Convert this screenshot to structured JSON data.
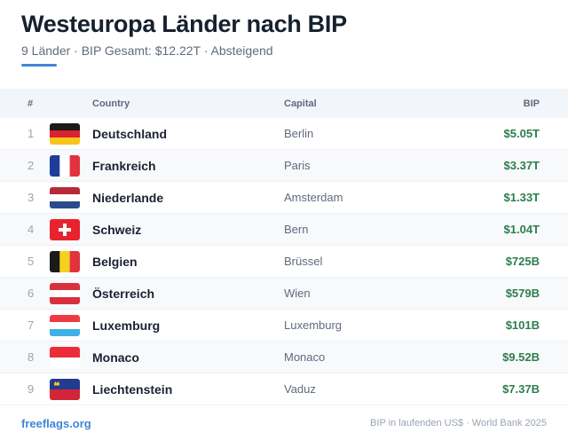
{
  "header": {
    "title": "Westeuropa Länder nach BIP",
    "subtitle": "9 Länder · BIP Gesamt: $12.22T · Absteigend"
  },
  "table": {
    "columns": {
      "num": "#",
      "country": "Country",
      "capital": "Capital",
      "gdp": "BIP"
    },
    "rows": [
      {
        "rank": "1",
        "country": "Deutschland",
        "capital": "Berlin",
        "gdp": "$5.05T",
        "flag": "germany-flag-icon"
      },
      {
        "rank": "2",
        "country": "Frankreich",
        "capital": "Paris",
        "gdp": "$3.37T",
        "flag": "france-flag-icon"
      },
      {
        "rank": "3",
        "country": "Niederlande",
        "capital": "Amsterdam",
        "gdp": "$1.33T",
        "flag": "netherlands-flag-icon"
      },
      {
        "rank": "4",
        "country": "Schweiz",
        "capital": "Bern",
        "gdp": "$1.04T",
        "flag": "switzerland-flag-icon"
      },
      {
        "rank": "5",
        "country": "Belgien",
        "capital": "Brüssel",
        "gdp": "$725B",
        "flag": "belgium-flag-icon"
      },
      {
        "rank": "6",
        "country": "Österreich",
        "capital": "Wien",
        "gdp": "$579B",
        "flag": "austria-flag-icon"
      },
      {
        "rank": "7",
        "country": "Luxemburg",
        "capital": "Luxemburg",
        "gdp": "$101B",
        "flag": "luxembourg-flag-icon"
      },
      {
        "rank": "8",
        "country": "Monaco",
        "capital": "Monaco",
        "gdp": "$9.52B",
        "flag": "monaco-flag-icon"
      },
      {
        "rank": "9",
        "country": "Liechtenstein",
        "capital": "Vaduz",
        "gdp": "$7.37B",
        "flag": "liechtenstein-flag-icon"
      }
    ]
  },
  "footer": {
    "brand": "freeflags.org",
    "source": "BIP in laufenden US$ · World Bank 2025"
  },
  "colors": {
    "accent": "#3f86d6",
    "gdp_text": "#2e7d4f",
    "title": "#16202e"
  }
}
